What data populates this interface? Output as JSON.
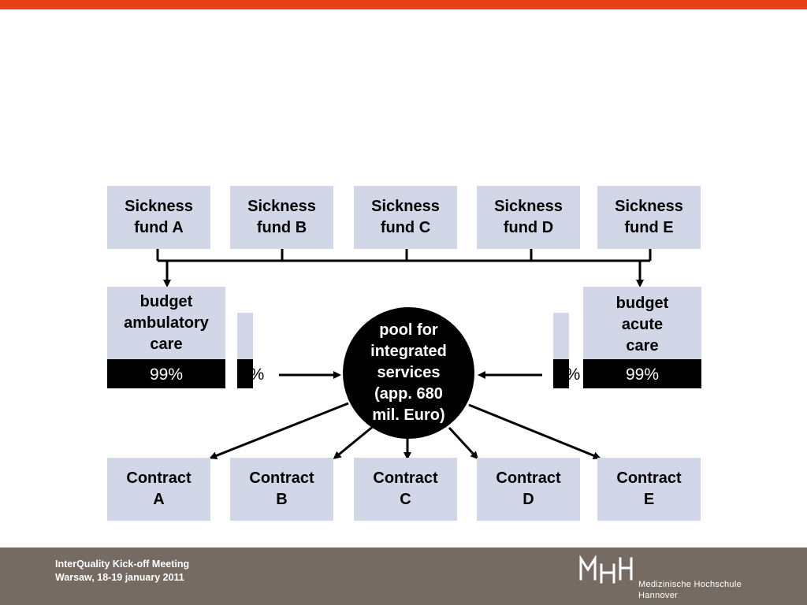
{
  "colors": {
    "accent": "#e84118",
    "box": "#d1d7e6",
    "footer": "#766b62"
  },
  "funds": [
    "Sickness\nfund A",
    "Sickness\nfund B",
    "Sickness\nfund C",
    "Sickness\nfund D",
    "Sickness\nfund E"
  ],
  "budget_left": {
    "label": "budget\nambulatory\ncare",
    "percent": "99%"
  },
  "budget_right": {
    "label": "budget\nacute\ncare",
    "percent": "99%"
  },
  "share_left": "1%",
  "share_right": "1%",
  "pool": "pool for\nintegrated\nservices\n(app. 680\nmil. Euro)",
  "contracts": [
    "Contract\nA",
    "Contract\nB",
    "Contract\nC",
    "Contract\nD",
    "Contract\nE"
  ],
  "footer": {
    "meeting_title": "InterQuality Kick-off Meeting",
    "meeting_place": "Warsaw, 18-19 january 2011",
    "logo_text": "MHH",
    "school_line1": "Medizinische Hochschule",
    "school_line2": "Hannover"
  }
}
